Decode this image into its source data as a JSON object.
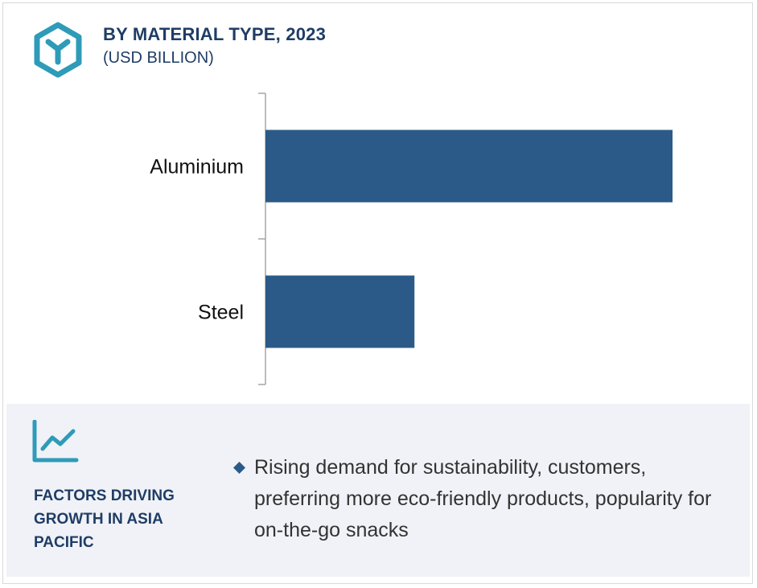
{
  "header": {
    "title": "BY MATERIAL TYPE, 2023",
    "subtitle": "(USD BILLION)",
    "icon": "cube-icon",
    "accent_color": "#2e9bb8",
    "title_color": "#1f3d66"
  },
  "chart_data": {
    "type": "bar",
    "orientation": "horizontal",
    "title": "BY MATERIAL TYPE, 2023",
    "subtitle": "(USD BILLION)",
    "categories": [
      "Aluminium",
      "Steel"
    ],
    "values": [
      100,
      36.6
    ],
    "xlim": [
      0,
      100
    ],
    "grid": false,
    "legend": "none",
    "bar_color": "#2b5a88",
    "axis_color": "#a6a6a6"
  },
  "factors": {
    "icon": "line-chart-icon",
    "title": "FACTORS DRIVING GROWTH IN ASIA PACIFIC",
    "bullet_icon": "diamond-bullet-icon",
    "text": "Rising demand for sustainability, customers, preferring more eco-friendly products, popularity for on-the-go snacks",
    "panel_color": "#f0f2f7"
  }
}
